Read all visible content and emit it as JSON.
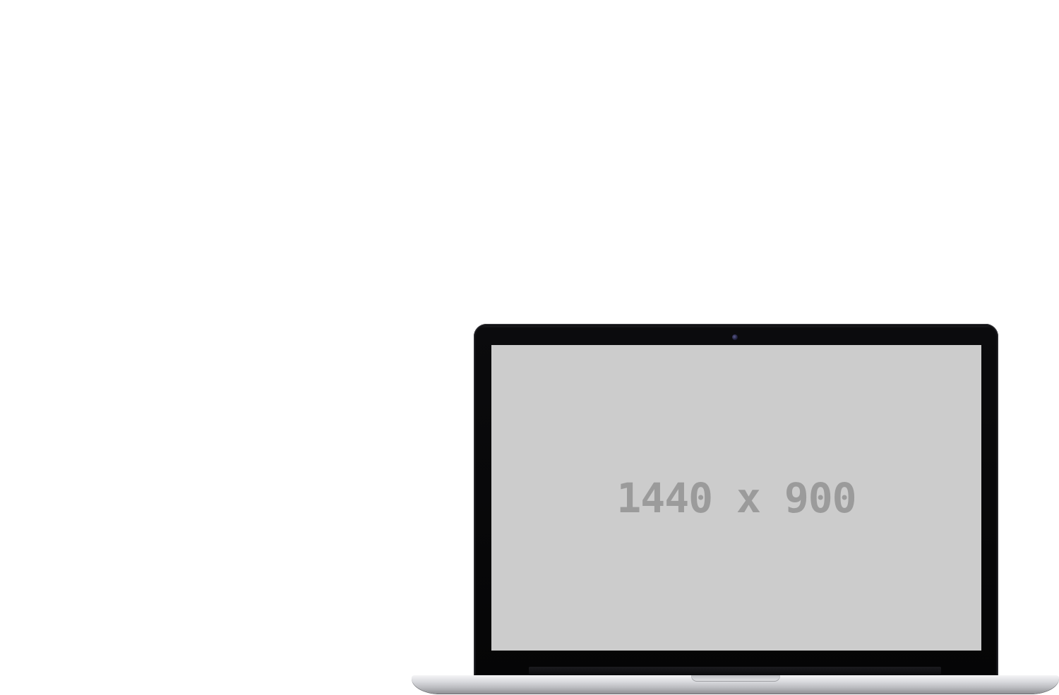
{
  "device": {
    "name": "laptop",
    "screen_placeholder_text": "1440 x 900",
    "colors": {
      "background": "#ffffff",
      "bezel": "#050506",
      "screen": "#cccccc",
      "placeholder_text": "#9b9b9b",
      "body": "#d9dade"
    }
  }
}
